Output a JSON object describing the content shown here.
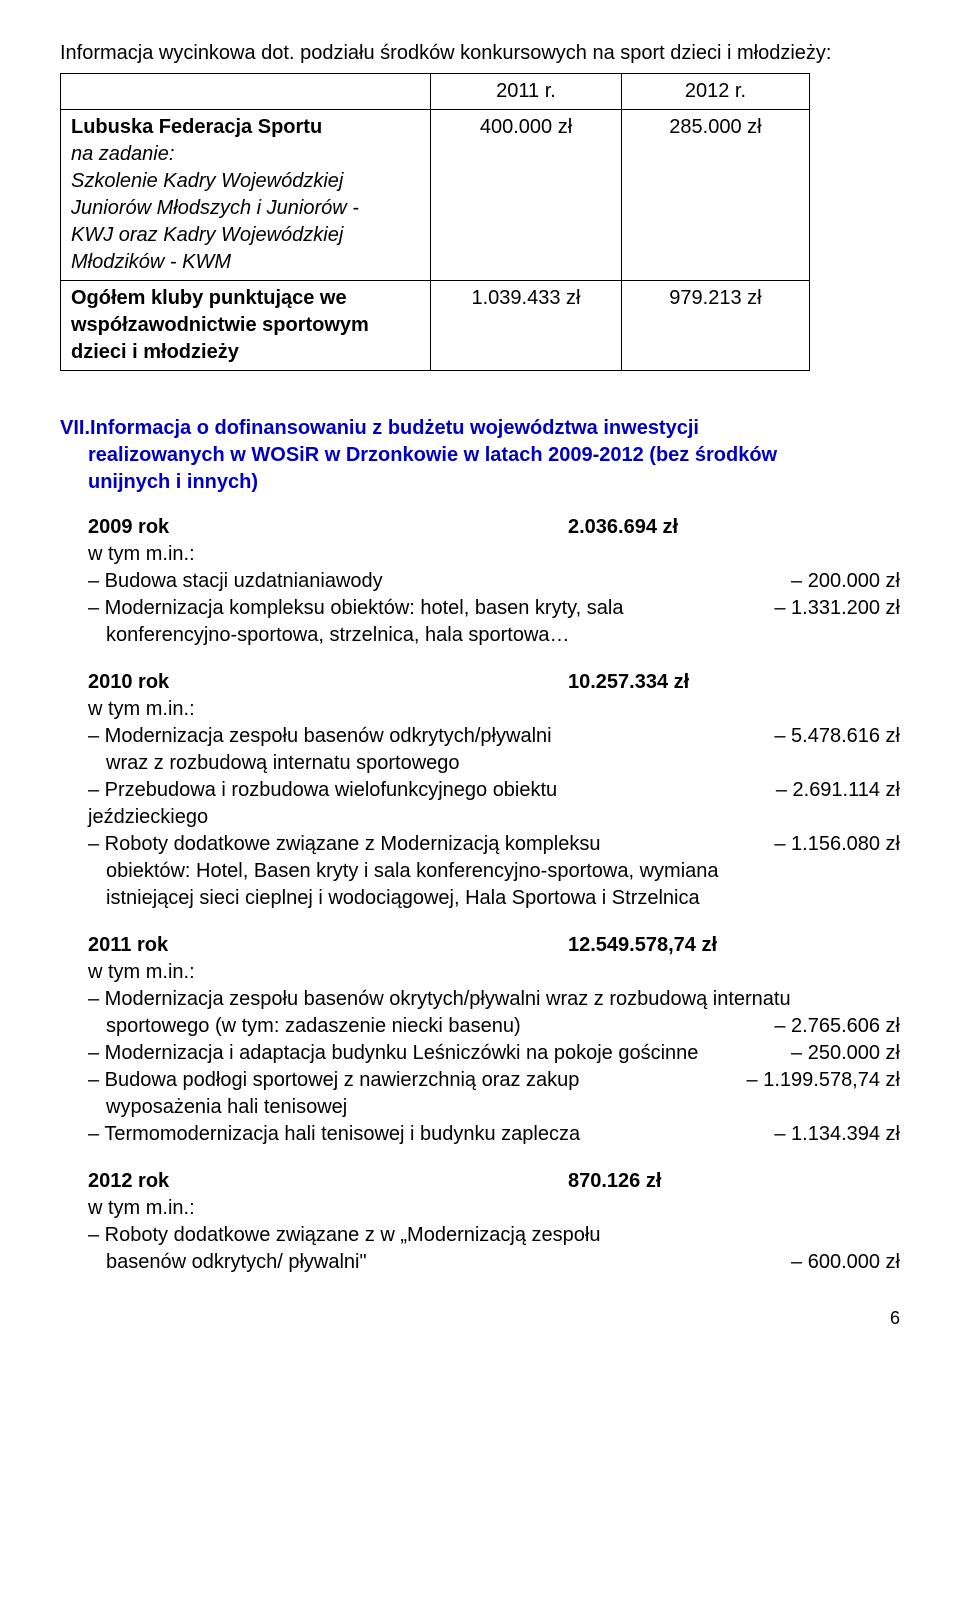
{
  "intro": "Informacja wycinkowa dot. podziału środków konkursowych na sport dzieci i młodzieży:",
  "table": {
    "header_year1": "2011 r.",
    "header_year2": "2012 r.",
    "row1_title": "Lubuska Federacja Sportu",
    "row1_sub_main": "na zadanie:",
    "row1_sub_line2": "Szkolenie Kadry Wojewódzkiej",
    "row1_sub_line3": "Juniorów Młodszych i Juniorów -",
    "row1_sub_line4": "KWJ oraz Kadry Wojewódzkiej",
    "row1_sub_line5": "Młodzików - KWM",
    "row1_v1": "400.000 zł",
    "row1_v2": "285.000 zł",
    "row2_line1": "Ogółem kluby punktujące we",
    "row2_line2": "współzawodnictwie sportowym",
    "row2_line3": "dzieci i młodzieży",
    "row2_v1": "1.039.433 zł",
    "row2_v2": "979.213 zł"
  },
  "section_title_a": "VII.Informacja o dofinansowaniu z budżetu województwa inwestycji",
  "section_title_b": "realizowanych w WOSiR w Drzonkowie w latach 2009-2012 (bez środków",
  "section_title_c": "unijnych i innych)",
  "y2009": {
    "year": "2009 rok",
    "total": "2.036.694 zł",
    "wtym": "w tym m.in.:",
    "i1_l": "– Budowa stacji uzdatnianiawody",
    "i1_r": "– 200.000 zł",
    "i2a": "– Modernizacja kompleksu obiektów: hotel, basen kryty, sala",
    "i2r": "– 1.331.200 zł",
    "i2b": "konferencyjno-sportowa, strzelnica, hala sportowa…"
  },
  "y2010": {
    "year": "2010 rok",
    "total": "10.257.334 zł",
    "wtym": "w tym m.in.:",
    "i1a": "– Modernizacja zespołu basenów odkrytych/pływalni",
    "i1r": "– 5.478.616 zł",
    "i1b": "wraz z rozbudową internatu sportowego",
    "i2a": "– Przebudowa i rozbudowa wielofunkcyjnego obiektu",
    "i2r": "– 2.691.114 zł",
    "i2b": "jeździeckiego",
    "i3a": "– Roboty dodatkowe związane z Modernizacją kompleksu",
    "i3r": "– 1.156.080 zł",
    "i3b": "obiektów: Hotel, Basen kryty i sala konferencyjno-sportowa, wymiana",
    "i3c": "istniejącej   sieci cieplnej i wodociągowej, Hala Sportowa i Strzelnica"
  },
  "y2011": {
    "year": "2011 rok",
    "total": "12.549.578,74 zł",
    "wtym": "w tym m.in.:",
    "i1a": "–  Modernizacja zespołu basenów okrytych/pływalni  wraz z rozbudową internatu",
    "i1b_l": "sportowego (w tym: zadaszenie niecki basenu)",
    "i1b_r": "– 2.765.606 zł",
    "i2_l": "– Modernizacja i adaptacja budynku Leśniczówki na pokoje gościnne",
    "i2_r": "– 250.000 zł",
    "i3a": "– Budowa podłogi sportowej z nawierzchnią oraz zakup",
    "i3r": "– 1.199.578,74 zł",
    "i3b": "wyposażenia hali tenisowej",
    "i4_l": "– Termomodernizacja hali tenisowej i budynku zaplecza",
    "i4_r": "– 1.134.394 zł"
  },
  "y2012": {
    "year": "2012 rok",
    "total": "870.126 zł",
    "wtym": "w tym m.in.:",
    "i1a": "– Roboty dodatkowe związane z w „Modernizacją zespołu",
    "i1b_l": "basenów odkrytych/ pływalni\"",
    "i1b_r": "– 600.000 zł"
  },
  "pagenum": "6"
}
